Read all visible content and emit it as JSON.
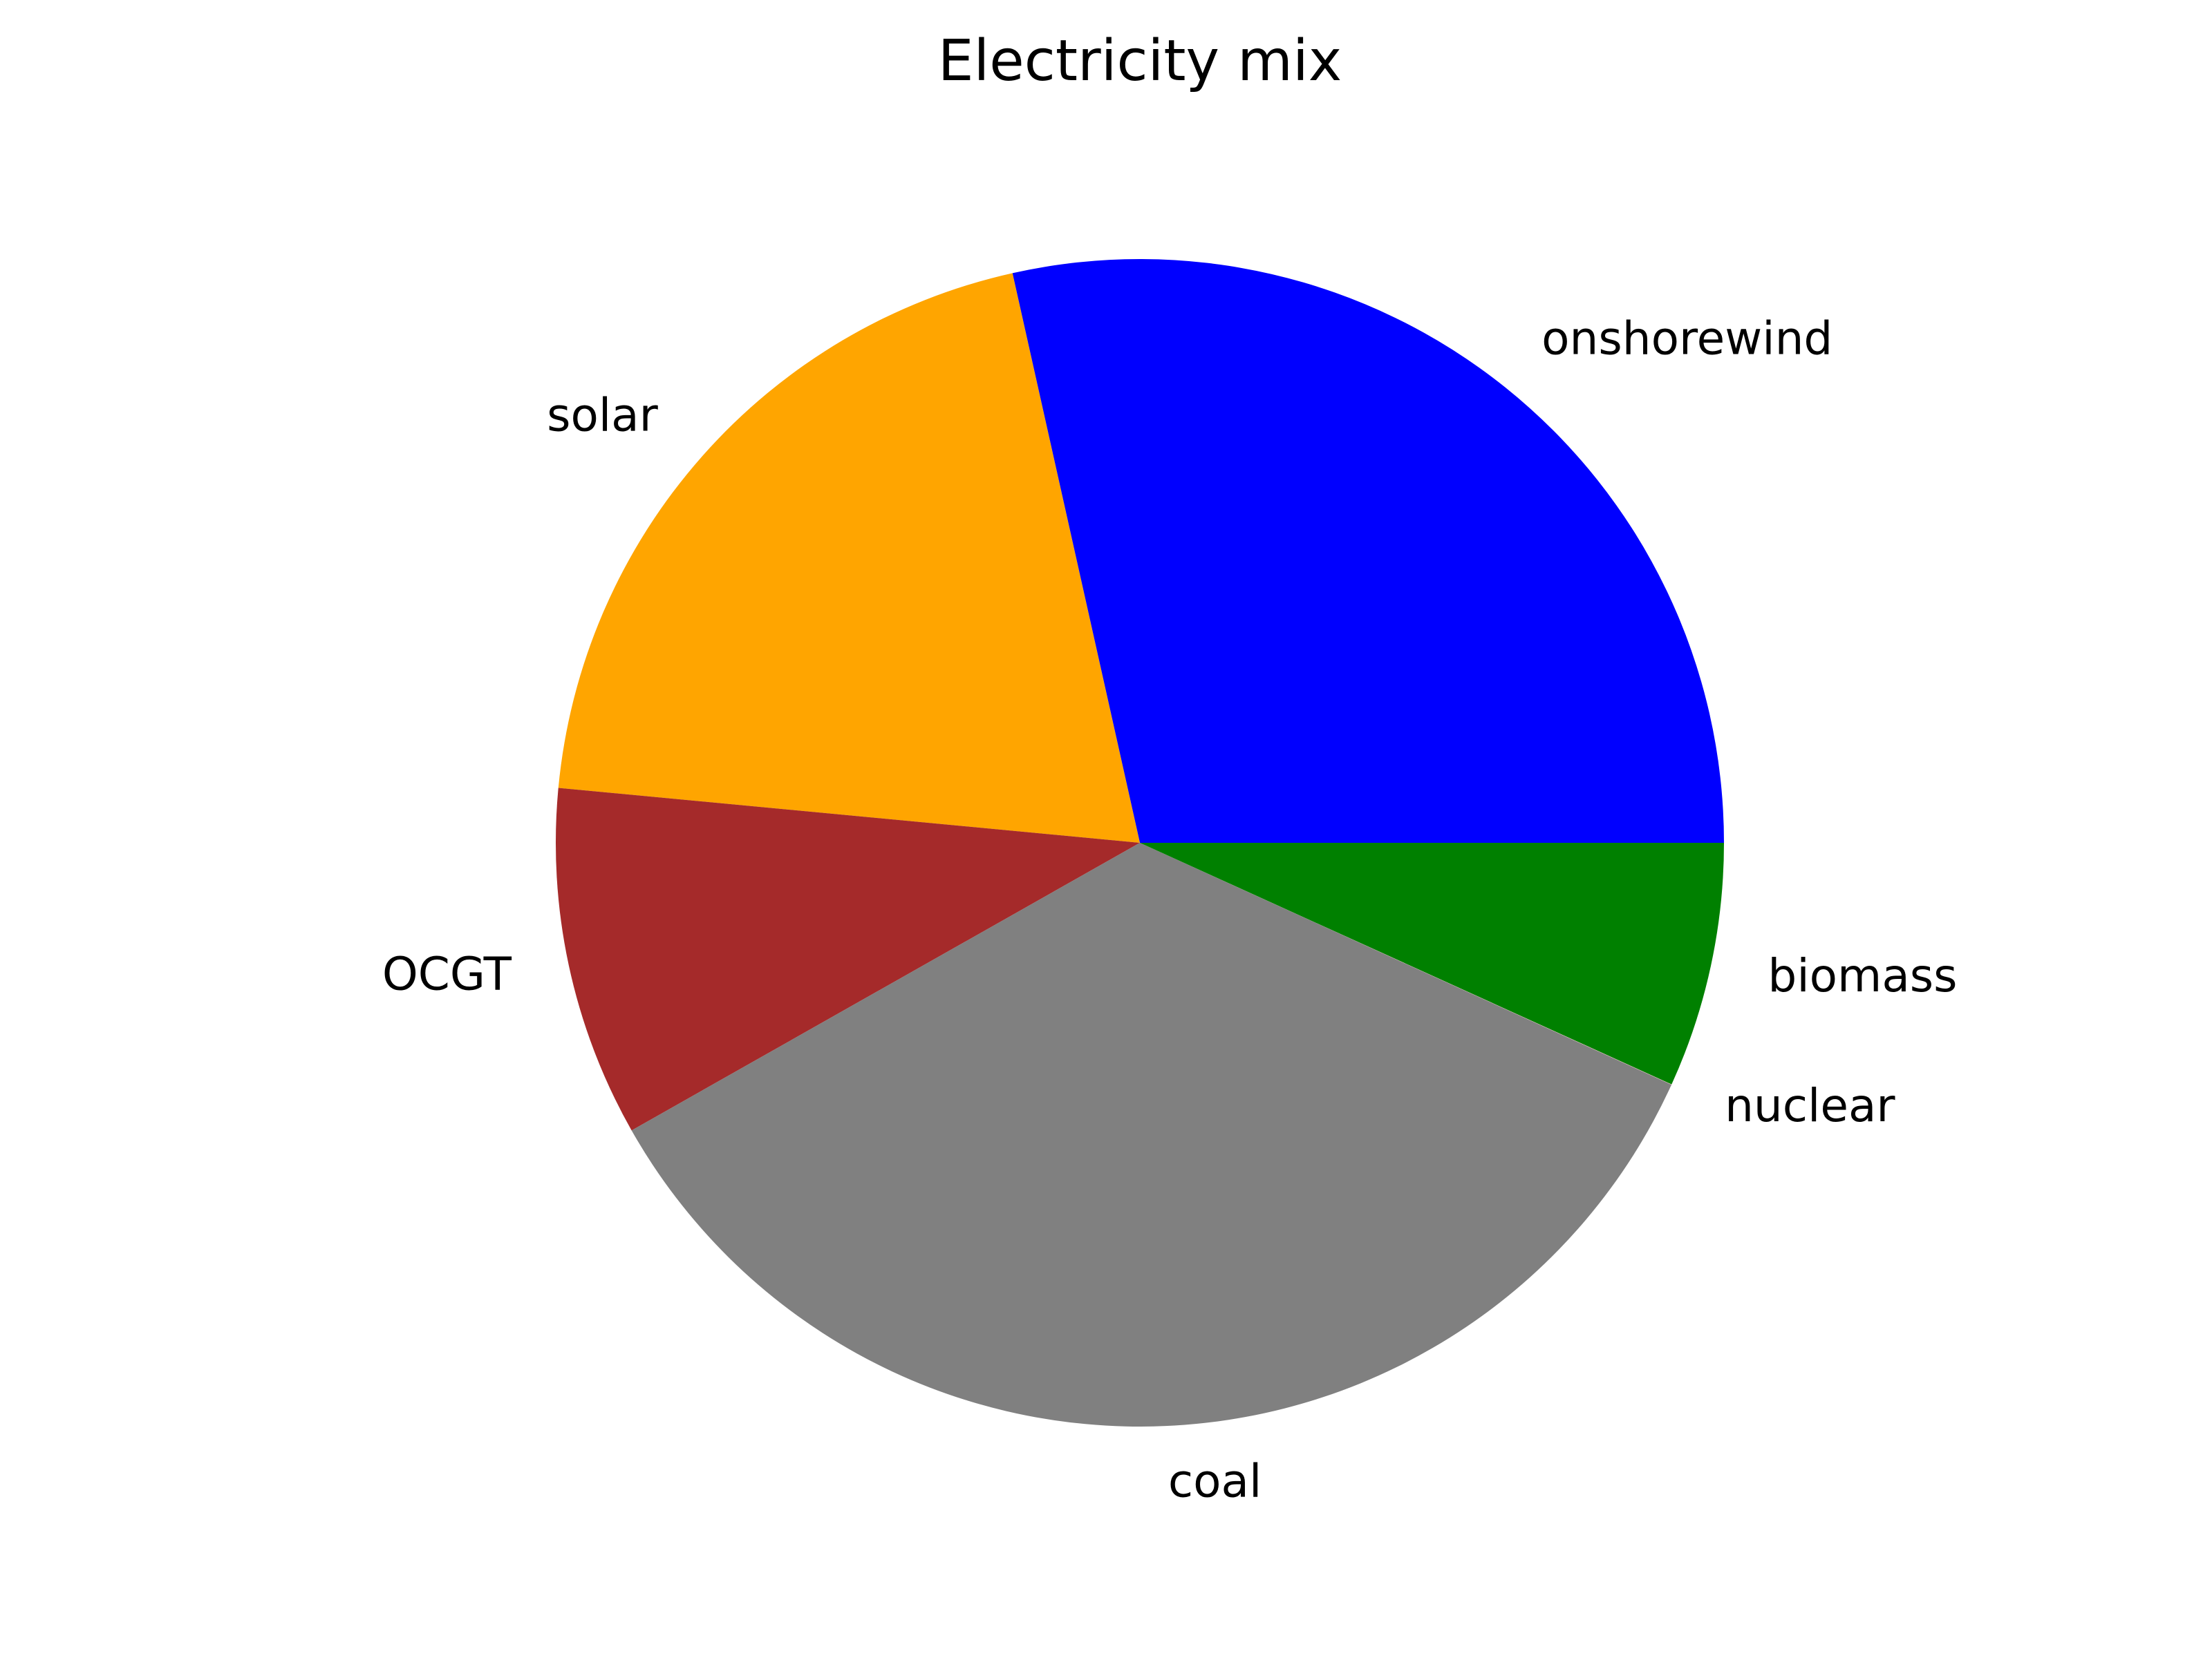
{
  "chart_data": {
    "type": "pie",
    "title": "Electricity mix",
    "start_angle_deg": 0,
    "direction": "counterclockwise",
    "slices": [
      {
        "label": "onshorewind",
        "value": 28.5,
        "color": "#0000ff"
      },
      {
        "label": "solar",
        "value": 20.0,
        "color": "#ffa500"
      },
      {
        "label": "OCGT",
        "value": 9.7,
        "color": "#a52a2a"
      },
      {
        "label": "coal",
        "value": 35.0,
        "color": "#808080"
      },
      {
        "label": "nuclear",
        "value": 0.01,
        "color": "#ffc0cb"
      },
      {
        "label": "biomass",
        "value": 6.79,
        "color": "#008000"
      }
    ]
  }
}
